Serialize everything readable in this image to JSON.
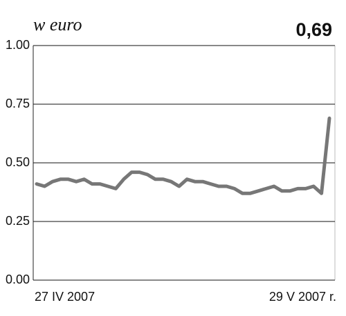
{
  "chart_data": {
    "type": "line",
    "title": "w euro",
    "annotation": "0,69",
    "categories": [
      "27 IV 2007",
      null,
      null,
      null,
      null,
      null,
      null,
      null,
      null,
      null,
      null,
      null,
      null,
      null,
      null,
      null,
      null,
      null,
      null,
      null,
      null,
      null,
      null,
      null,
      null,
      null,
      null,
      null,
      null,
      null,
      null,
      null,
      null,
      null,
      null,
      null,
      null,
      "29 V 2007 r."
    ],
    "series": [
      {
        "color": "#777777",
        "values": [
          0.41,
          0.4,
          0.42,
          0.43,
          0.43,
          0.42,
          0.43,
          0.41,
          0.41,
          0.4,
          0.39,
          0.43,
          0.46,
          0.46,
          0.45,
          0.43,
          0.43,
          0.42,
          0.4,
          0.43,
          0.42,
          0.42,
          0.41,
          0.4,
          0.4,
          0.39,
          0.37,
          0.37,
          0.38,
          0.39,
          0.4,
          0.38,
          0.38,
          0.39,
          0.39,
          0.4,
          0.37,
          0.69
        ]
      }
    ],
    "ylim": [
      0,
      1
    ],
    "yticks": [
      {
        "value": 0,
        "label": "0.00"
      },
      {
        "value": 0.25,
        "label": "0.25"
      },
      {
        "value": 0.5,
        "label": "0.50"
      },
      {
        "value": 0.75,
        "label": "0.75"
      },
      {
        "value": 1,
        "label": "1.00"
      }
    ],
    "grid": true
  }
}
